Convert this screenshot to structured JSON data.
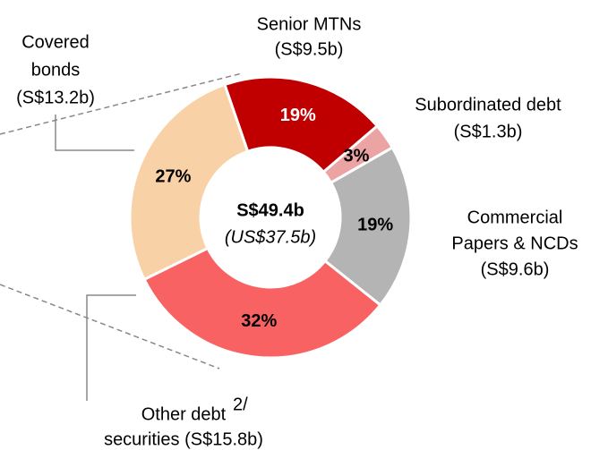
{
  "chart_data": {
    "type": "donut",
    "categories": [
      [
        "Senior MTNs",
        "(S$9.5b)"
      ],
      [
        "Subordinated debt",
        "(S$1.3b)"
      ],
      [
        "Commercial",
        "Papers & NCDs",
        "(S$9.6b)"
      ],
      [
        "Other debt",
        "securities (S$15.8b)"
      ],
      [
        "Covered",
        "bonds",
        "(S$13.2b)"
      ]
    ],
    "values": [
      19,
      3,
      19,
      32,
      27
    ],
    "value_labels": [
      "19%",
      "3%",
      "19%",
      "32%",
      "27%"
    ],
    "colors": [
      "#c00000",
      "#eba3a3",
      "#b4b4b4",
      "#f86262",
      "#f9d1a6"
    ],
    "value_label_colors": [
      "#ffffff",
      "#000000",
      "#000000",
      "#000000",
      "#000000"
    ],
    "center_labels": [
      "S$49.4b",
      "(US$37.5b)"
    ],
    "footnote_mark": "2/"
  }
}
